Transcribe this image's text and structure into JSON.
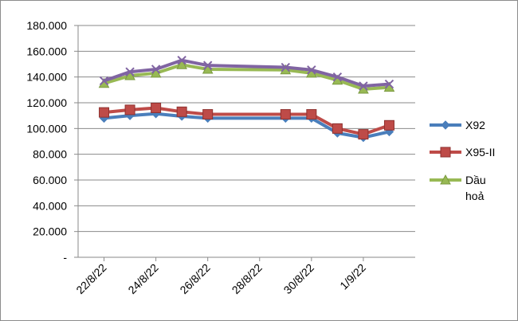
{
  "chart_data": {
    "type": "line",
    "title": "",
    "xlabel": "",
    "ylabel": "",
    "ylim": [
      0,
      180000
    ],
    "y_ticks": [
      {
        "value": 0,
        "label": "-"
      },
      {
        "value": 20000,
        "label": "20.000"
      },
      {
        "value": 40000,
        "label": "40.000"
      },
      {
        "value": 60000,
        "label": "60.000"
      },
      {
        "value": 80000,
        "label": "80.000"
      },
      {
        "value": 100000,
        "label": "100.000"
      },
      {
        "value": 120000,
        "label": "120.000"
      },
      {
        "value": 140000,
        "label": "140.000"
      },
      {
        "value": 160000,
        "label": "160.000"
      },
      {
        "value": 180000,
        "label": "180.000"
      }
    ],
    "x_ticks": [
      "22/8/22",
      "24/8/22",
      "26/8/22",
      "28/8/22",
      "30/8/22",
      "1/9/22"
    ],
    "x_tick_dates": [
      "2022-08-22",
      "2022-08-24",
      "2022-08-26",
      "2022-08-28",
      "2022-08-30",
      "2022-09-01"
    ],
    "x": [
      "2022-08-22",
      "2022-08-23",
      "2022-08-24",
      "2022-08-25",
      "2022-08-26",
      "2022-08-29",
      "2022-08-30",
      "2022-08-31",
      "2022-09-01",
      "2022-09-02"
    ],
    "grid": true,
    "legend_position": "right",
    "series": [
      {
        "name": "X92",
        "color": "#4a7ebb",
        "marker": "diamond",
        "values": [
          108000,
          110000,
          111500,
          109500,
          108000,
          108000,
          108000,
          96500,
          93000,
          97500
        ]
      },
      {
        "name": "Dầu hoả",
        "legend_lines": [
          "Dầu",
          "hoả"
        ],
        "color": "#98b954",
        "marker": "triangle",
        "values": [
          135000,
          141000,
          143000,
          149500,
          146000,
          145500,
          143000,
          137500,
          130500,
          132000
        ]
      },
      {
        "name": "",
        "color": "#8064a2",
        "marker": "x",
        "values": [
          137000,
          144000,
          146000,
          153000,
          149000,
          147500,
          145500,
          140000,
          133000,
          134500
        ]
      },
      {
        "name": "X95-II",
        "color": "#be4b48",
        "marker": "square",
        "values": [
          112500,
          114500,
          116000,
          113000,
          111000,
          111000,
          111000,
          100000,
          95500,
          102500
        ]
      }
    ]
  }
}
